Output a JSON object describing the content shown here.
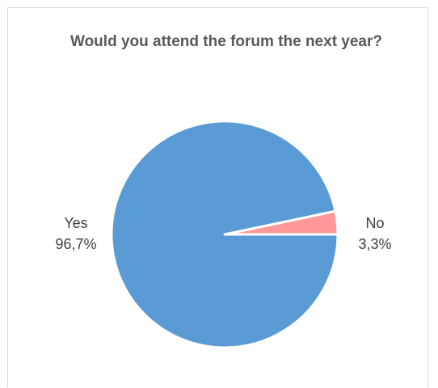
{
  "chart_data": {
    "type": "pie",
    "title": "Would you attend the forum the next year?",
    "slices": [
      {
        "label": "Yes",
        "value": 96.7,
        "value_text": "96,7%",
        "color": "#5b9bd5"
      },
      {
        "label": "No",
        "value": 3.3,
        "value_text": "3,3%",
        "color": "#ff9999"
      }
    ],
    "legend": "none",
    "data_labels": "outside-end"
  }
}
